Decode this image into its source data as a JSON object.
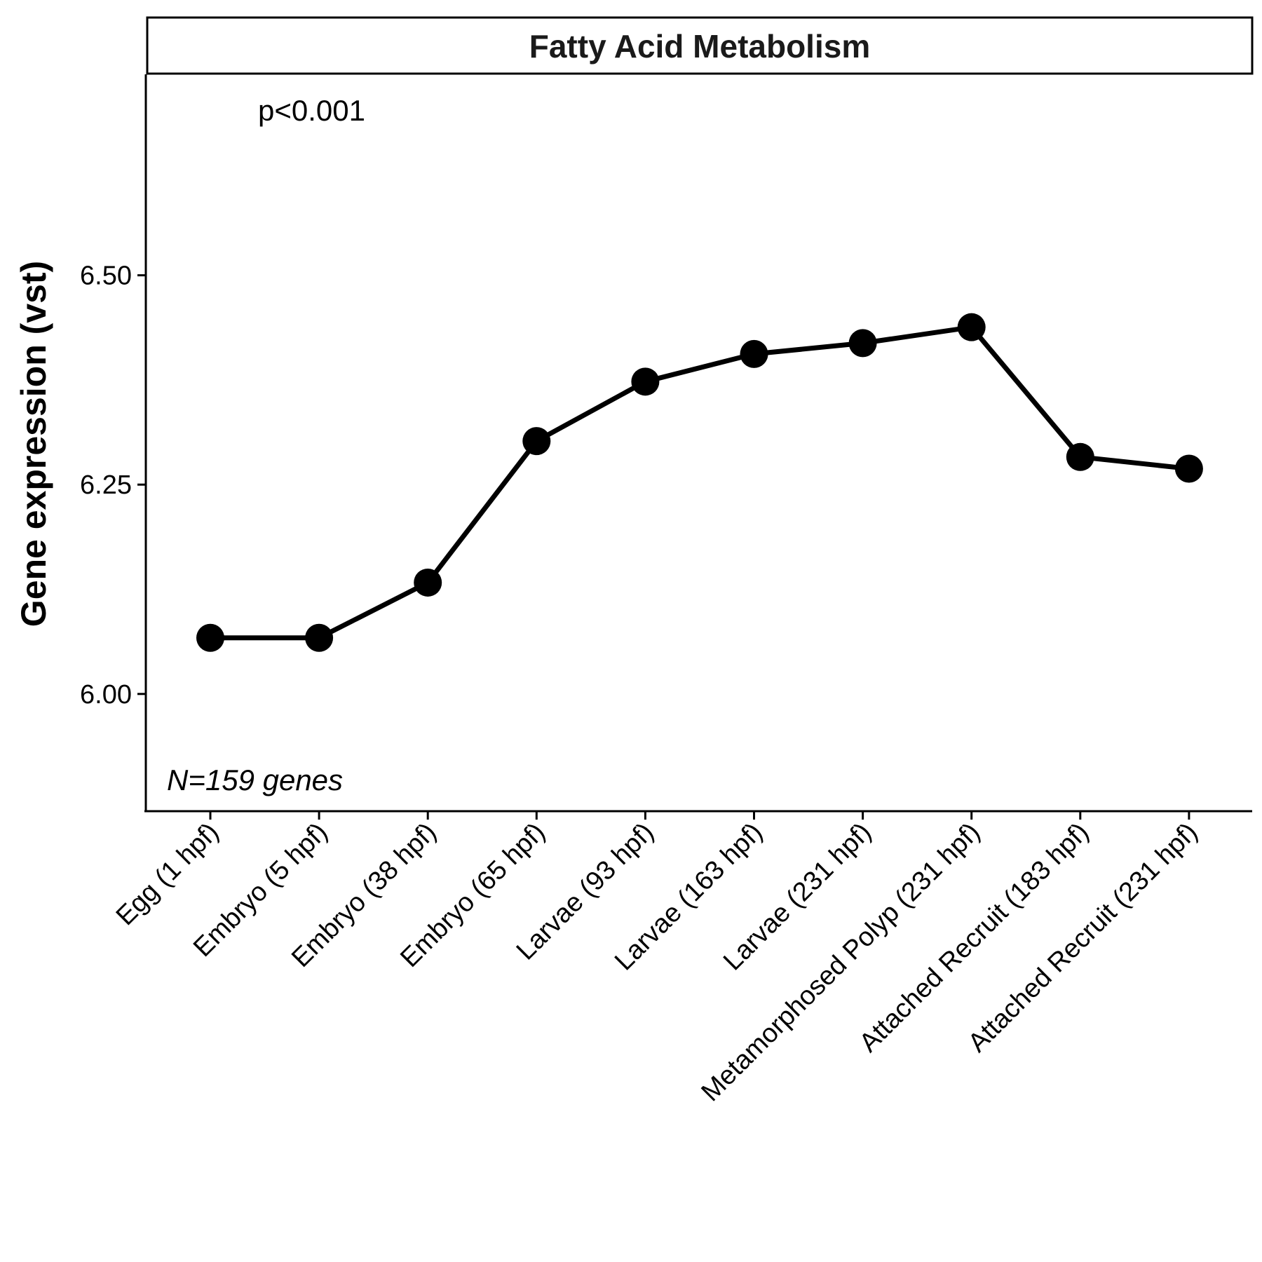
{
  "chart_data": {
    "type": "line",
    "title": "Fatty Acid Metabolism",
    "ylabel": "Gene expression (vst)",
    "xlabel": "",
    "ylim": [
      5.86,
      6.74
    ],
    "yticks": [
      6.0,
      6.25,
      6.5
    ],
    "ytick_labels": [
      "6.00",
      "6.25",
      "6.50"
    ],
    "categories": [
      "Egg (1 hpf)",
      "Embryo (5 hpf)",
      "Embryo (38 hpf)",
      "Embryo (65 hpf)",
      "Larvae (93 hpf)",
      "Larvae (163 hpf)",
      "Larvae (231 hpf)",
      "Metamorphosed Polyp (231 hpf)",
      "Attached Recruit (183 hpf)",
      "Attached Recruit (231 hpf)"
    ],
    "series": [
      {
        "values": [
          6.067,
          6.067,
          6.133,
          6.302,
          6.373,
          6.406,
          6.419,
          6.438,
          6.283,
          6.269
        ]
      }
    ],
    "annotations": {
      "pvalue": "p<0.001",
      "n_genes": "N=159 genes"
    },
    "grid": false,
    "legend": "none",
    "colors": {
      "line": "#000000",
      "point": "#000000",
      "strip_fill": "#ffffff"
    }
  }
}
